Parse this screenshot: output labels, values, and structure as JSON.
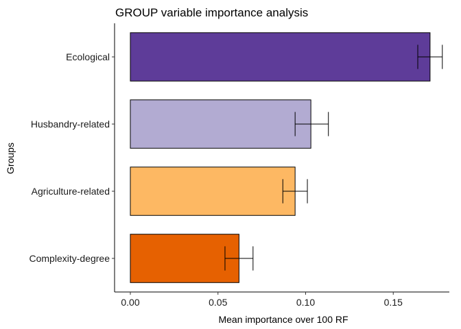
{
  "chart_data": {
    "type": "bar",
    "orientation": "horizontal",
    "title": "GROUP variable importance analysis",
    "xlabel": "Mean importance over 100 RF",
    "ylabel": "Groups",
    "categories": [
      "Ecological",
      "Husbandry-related",
      "Agriculture-related",
      "Complexity-degree"
    ],
    "values": [
      0.171,
      0.103,
      0.094,
      0.062
    ],
    "error_low": [
      0.164,
      0.094,
      0.087,
      0.054
    ],
    "error_high": [
      0.178,
      0.113,
      0.101,
      0.07
    ],
    "colors": [
      "#5e3c99",
      "#b2abd2",
      "#fdb863",
      "#e66101"
    ],
    "xlim": [
      -0.009,
      0.182
    ],
    "xticks": [
      0.0,
      0.05,
      0.1,
      0.15
    ],
    "xtick_labels": [
      "0.00",
      "0.05",
      "0.10",
      "0.15"
    ],
    "grid": false,
    "legend": "none"
  }
}
